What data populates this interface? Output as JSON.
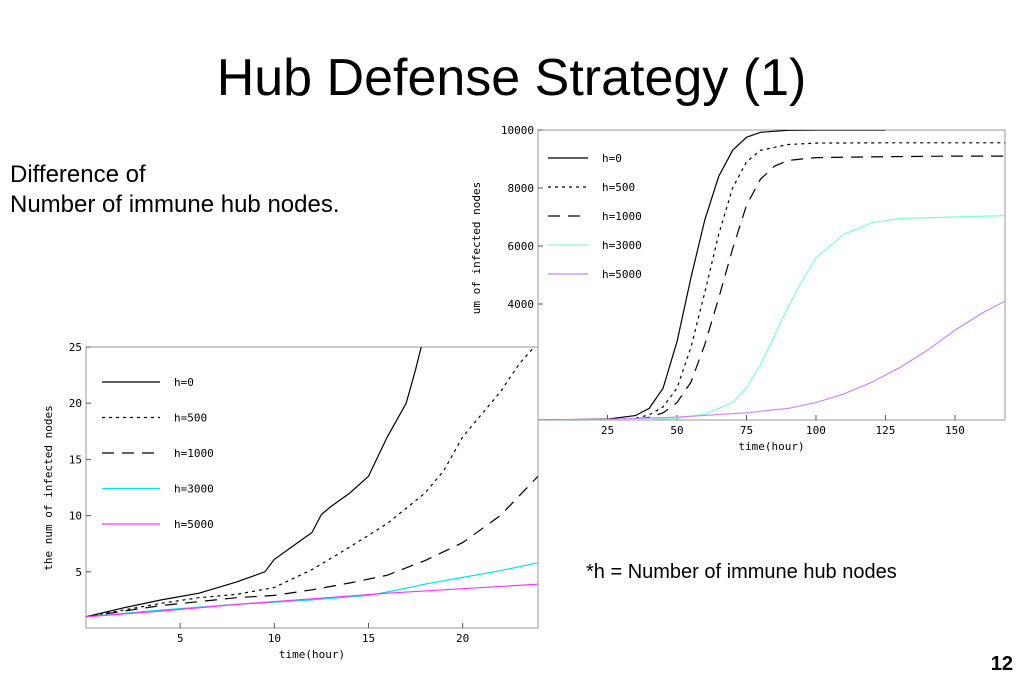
{
  "slide": {
    "title": "Hub Defense Strategy (1)",
    "subtitle_line1": "Difference of",
    "subtitle_line2": "Number of immune hub nodes.",
    "note": "*h = Number of immune hub nodes",
    "page_number": "12"
  },
  "chart_data": [
    {
      "type": "line",
      "title": "",
      "xlabel": "time(hour)",
      "ylabel": "um of infected nodes",
      "xlim": [
        0,
        168
      ],
      "ylim": [
        0,
        10000
      ],
      "xticks": [
        25,
        50,
        75,
        100,
        125,
        150
      ],
      "yticks": [
        4000,
        6000,
        8000,
        10000
      ],
      "legend_position": "top-left",
      "grid": false,
      "series": [
        {
          "name": "h=0",
          "color": "#000000",
          "dash": "solid",
          "x": [
            0,
            25,
            35,
            40,
            45,
            50,
            55,
            60,
            65,
            70,
            75,
            80,
            90,
            100,
            125
          ],
          "y": [
            0,
            30,
            150,
            400,
            1100,
            2700,
            4900,
            6900,
            8400,
            9300,
            9750,
            9920,
            9990,
            10000,
            10000
          ]
        },
        {
          "name": "h=500",
          "color": "#000000",
          "dash": "dotted",
          "x": [
            0,
            25,
            35,
            40,
            45,
            50,
            55,
            60,
            65,
            70,
            75,
            80,
            90,
            100,
            125,
            150,
            168
          ],
          "y": [
            0,
            10,
            60,
            180,
            450,
            1100,
            2500,
            4400,
            6400,
            8000,
            8900,
            9300,
            9500,
            9550,
            9560,
            9560,
            9560
          ]
        },
        {
          "name": "h=1000",
          "color": "#000000",
          "dash": "dashed",
          "x": [
            0,
            25,
            35,
            40,
            45,
            50,
            55,
            60,
            65,
            70,
            75,
            80,
            85,
            90,
            100,
            125,
            150,
            168
          ],
          "y": [
            0,
            5,
            30,
            90,
            250,
            600,
            1300,
            2600,
            4200,
            5900,
            7400,
            8300,
            8750,
            8950,
            9050,
            9080,
            9100,
            9100
          ]
        },
        {
          "name": "h=3000",
          "color": "#7fffd4",
          "dash": "solid",
          "x": [
            0,
            40,
            50,
            60,
            70,
            75,
            80,
            85,
            90,
            95,
            100,
            110,
            120,
            130,
            150,
            168
          ],
          "y": [
            0,
            20,
            60,
            200,
            600,
            1100,
            1900,
            2900,
            3900,
            4800,
            5600,
            6400,
            6800,
            6950,
            7000,
            7050
          ]
        },
        {
          "name": "h=5000",
          "color": "#cc88ff",
          "dash": "solid",
          "x": [
            0,
            25,
            50,
            75,
            90,
            100,
            110,
            120,
            130,
            140,
            150,
            160,
            168
          ],
          "y": [
            0,
            20,
            100,
            250,
            400,
            600,
            900,
            1300,
            1800,
            2400,
            3100,
            3700,
            4100
          ]
        }
      ]
    },
    {
      "type": "line",
      "title": "",
      "xlabel": "time(hour)",
      "ylabel": "the num of infected nodes",
      "xlim": [
        0,
        24
      ],
      "ylim": [
        0,
        25
      ],
      "xticks": [
        5,
        10,
        15,
        20
      ],
      "yticks": [
        5,
        10,
        15,
        20,
        25
      ],
      "legend_position": "top-left",
      "grid": false,
      "series": [
        {
          "name": "h=0",
          "color": "#000000",
          "dash": "solid",
          "x": [
            0,
            2,
            4,
            6,
            8,
            9.5,
            10,
            11,
            12,
            12.5,
            13,
            14,
            15,
            16,
            17,
            17.5,
            17.8
          ],
          "y": [
            1,
            1.8,
            2.5,
            3.1,
            4.1,
            5,
            6.1,
            7.3,
            8.5,
            10.1,
            10.8,
            12,
            13.5,
            17,
            20,
            23,
            25
          ]
        },
        {
          "name": "h=500",
          "color": "#000000",
          "dash": "dotted",
          "x": [
            0,
            2,
            4,
            6,
            8,
            10,
            12,
            14,
            16,
            18,
            19,
            20,
            21,
            22,
            23,
            23.8
          ],
          "y": [
            1,
            1.6,
            2.2,
            2.7,
            3,
            3.6,
            5.2,
            7.2,
            9.3,
            12,
            14,
            17,
            19,
            21,
            23.5,
            25
          ]
        },
        {
          "name": "h=1000",
          "color": "#000000",
          "dash": "dashed",
          "x": [
            0,
            4,
            8,
            10,
            12,
            14,
            16,
            18,
            20,
            22,
            24
          ],
          "y": [
            1,
            2,
            2.7,
            2.9,
            3.4,
            4,
            4.7,
            6,
            7.6,
            10,
            13.5
          ]
        },
        {
          "name": "h=3000",
          "color": "#00e5ee",
          "dash": "solid",
          "x": [
            0,
            4,
            8,
            12,
            15,
            16,
            18,
            20,
            22,
            24
          ],
          "y": [
            1,
            1.6,
            2.1,
            2.5,
            2.9,
            3.2,
            3.9,
            4.5,
            5.1,
            5.8
          ]
        },
        {
          "name": "h=5000",
          "color": "#ff33ff",
          "dash": "solid",
          "x": [
            0,
            4,
            8,
            12,
            16,
            20,
            24
          ],
          "y": [
            1,
            1.5,
            2.1,
            2.6,
            3.1,
            3.5,
            3.9
          ]
        }
      ]
    }
  ]
}
